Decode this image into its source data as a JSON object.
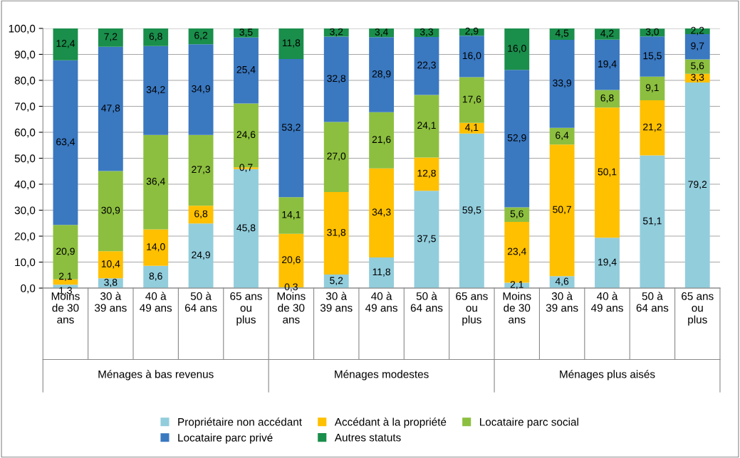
{
  "chart_data": {
    "type": "bar",
    "stacked": true,
    "categories": [
      "Moins\nde 30\nans",
      "30 à\n39 ans",
      "40 à\n49 ans",
      "50 à\n64 ans",
      "65 ans\nou\nplus",
      "Moins\nde 30\nans",
      "30 à\n39 ans",
      "40 à\n49 ans",
      "50 à\n64 ans",
      "65 ans\nou\nplus",
      "Moins\nde 30\nans",
      "30 à\n39 ans",
      "40 à\n49 ans",
      "50 à\n64 ans",
      "65 ans\nou\nplus"
    ],
    "annotations": [
      "Ménages à bas revenus",
      "Ménages modestes",
      "Ménages plus aisés"
    ],
    "series": [
      {
        "name": "Propriétaire non accédant",
        "color": "#92cddc",
        "values": [
          1.3,
          3.8,
          8.6,
          24.9,
          45.8,
          0.3,
          5.2,
          11.8,
          37.5,
          59.5,
          2.1,
          4.6,
          19.4,
          51.1,
          79.2
        ],
        "value_labels": [
          "1,3",
          "3,8",
          "8,6",
          "24,9",
          "45,8",
          "0,3",
          "5,2",
          "11,8",
          "37,5",
          "59,5",
          "2,1",
          "4,6",
          "19,4",
          "51,1",
          "79,2"
        ]
      },
      {
        "name": "Accédant à la propriété",
        "color": "#ffc000",
        "values": [
          2.1,
          10.4,
          14.0,
          6.8,
          0.7,
          20.6,
          31.8,
          34.3,
          12.8,
          4.1,
          23.4,
          50.7,
          50.1,
          21.2,
          3.3
        ],
        "value_labels": [
          "2,1",
          "10,4",
          "14,0",
          "6,8",
          "0,7",
          "20,6",
          "31,8",
          "34,3",
          "12,8",
          "4,1",
          "23,4",
          "50,7",
          "50,1",
          "21,2",
          "3,3"
        ]
      },
      {
        "name": "Locataire parc social",
        "color": "#8cbf3f",
        "values": [
          20.9,
          30.9,
          36.4,
          27.3,
          24.6,
          14.1,
          27.0,
          21.6,
          24.1,
          17.6,
          5.6,
          6.4,
          6.8,
          9.1,
          5.6
        ],
        "value_labels": [
          "20,9",
          "30,9",
          "36,4",
          "27,3",
          "24,6",
          "14,1",
          "27,0",
          "21,6",
          "24,1",
          "17,6",
          "5,6",
          "6,4",
          "6,8",
          "9,1",
          "5,6"
        ]
      },
      {
        "name": "Locataire parc privé",
        "color": "#3a78c0",
        "values": [
          63.4,
          47.8,
          34.2,
          34.9,
          25.4,
          53.2,
          32.8,
          28.9,
          22.3,
          16.0,
          52.9,
          33.9,
          19.4,
          15.5,
          9.7
        ],
        "value_labels": [
          "63,4",
          "47,8",
          "34,2",
          "34,9",
          "25,4",
          "53,2",
          "32,8",
          "28,9",
          "22,3",
          "16,0",
          "52,9",
          "33,9",
          "19,4",
          "15,5",
          "9,7"
        ]
      },
      {
        "name": "Autres statuts",
        "color": "#1a8e4b",
        "values": [
          12.4,
          7.2,
          6.8,
          6.2,
          3.5,
          11.8,
          3.2,
          3.4,
          3.3,
          2.9,
          16.0,
          4.5,
          4.2,
          3.0,
          2.2
        ],
        "value_labels": [
          "12,4",
          "7,2",
          "6,8",
          "6,2",
          "3,5",
          "11,8",
          "3,2",
          "3,4",
          "3,3",
          "2,9",
          "16,0",
          "4,5",
          "4,2",
          "3,0",
          "2,2"
        ]
      }
    ],
    "ylim": [
      0,
      100
    ],
    "yticks": [
      {
        "value": 0,
        "label": "0,0"
      },
      {
        "value": 10,
        "label": "10,0"
      },
      {
        "value": 20,
        "label": "20,0"
      },
      {
        "value": 30,
        "label": "30,0"
      },
      {
        "value": 40,
        "label": "40,0"
      },
      {
        "value": 50,
        "label": "50,0"
      },
      {
        "value": 60,
        "label": "60,0"
      },
      {
        "value": 70,
        "label": "70,0"
      },
      {
        "value": 80,
        "label": "80,0"
      },
      {
        "value": 90,
        "label": "90,0"
      },
      {
        "value": 100,
        "label": "100,0"
      }
    ],
    "grid": "y",
    "legend": "bottom"
  }
}
